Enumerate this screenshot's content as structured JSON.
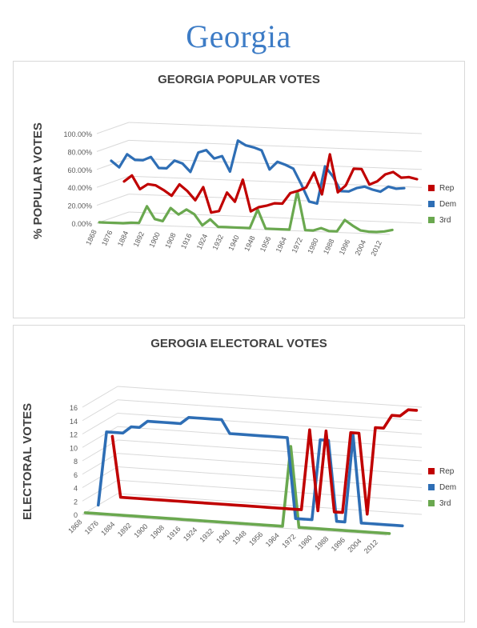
{
  "page": {
    "title": "Georgia"
  },
  "colors": {
    "rep": "#c00000",
    "dem": "#2e6eb5",
    "third": "#6aa84f"
  },
  "chart_data": [
    {
      "type": "line",
      "title": "GEORGIA POPULAR VOTES",
      "ylabel": "% POPULAR VOTES",
      "ytick_labels": [
        "0.00%",
        "20.00%",
        "40.00%",
        "60.00%",
        "80.00%",
        "100.00%"
      ],
      "ylim": [
        0,
        100
      ],
      "xtick_labels": [
        "1868",
        "1876",
        "1884",
        "1892",
        "1900",
        "1908",
        "1916",
        "1924",
        "1932",
        "1940",
        "1948",
        "1956",
        "1964",
        "1972",
        "1980",
        "1988",
        "1996",
        "2004",
        "2012"
      ],
      "x": [
        1868,
        1872,
        1876,
        1880,
        1884,
        1888,
        1892,
        1896,
        1900,
        1904,
        1908,
        1912,
        1916,
        1920,
        1924,
        1928,
        1932,
        1936,
        1940,
        1944,
        1948,
        1952,
        1956,
        1960,
        1964,
        1968,
        1972,
        1976,
        1980,
        1984,
        1988,
        1992,
        1996,
        2000,
        2004,
        2008,
        2012,
        2016
      ],
      "legend_position": "right",
      "series": [
        {
          "name": "Rep",
          "color_key": "rep",
          "values": [
            36,
            43,
            28,
            34,
            33,
            28,
            22,
            35,
            28,
            18,
            33,
            5,
            7,
            28,
            18,
            43,
            8,
            13,
            15,
            18,
            18,
            30,
            33,
            37,
            54,
            30,
            75,
            33,
            41,
            60,
            60,
            43,
            47,
            55,
            58,
            52,
            53,
            51
          ]
        },
        {
          "name": "Dem",
          "color_key": "dem",
          "values": [
            64,
            57,
            72,
            66,
            66,
            70,
            58,
            58,
            67,
            64,
            55,
            77,
            80,
            71,
            74,
            57,
            92,
            87,
            85,
            82,
            61,
            70,
            67,
            63,
            46,
            27,
            25,
            67,
            56,
            40,
            40,
            44,
            46,
            43,
            41,
            47,
            45,
            46
          ]
        },
        {
          "name": "3rd",
          "color_key": "third",
          "values": [
            0,
            0,
            0,
            0,
            1,
            1,
            20,
            6,
            4,
            19,
            12,
            18,
            13,
            1,
            8,
            0,
            0,
            0,
            0,
            0,
            21,
            0,
            0,
            0,
            0,
            43,
            0,
            0,
            3,
            0,
            0,
            13,
            7,
            2,
            1,
            1,
            2,
            4
          ]
        }
      ]
    },
    {
      "type": "line",
      "title": "GEROGIA ELECTORAL VOTES",
      "ylabel": "ELECTORAL VOTES",
      "ytick_labels": [
        "0",
        "2",
        "4",
        "6",
        "8",
        "10",
        "12",
        "14",
        "16"
      ],
      "ylim": [
        0,
        16
      ],
      "xtick_labels": [
        "1868",
        "1876",
        "1884",
        "1892",
        "1900",
        "1908",
        "1916",
        "1924",
        "1932",
        "1940",
        "1948",
        "1956",
        "1964",
        "1972",
        "1980",
        "1988",
        "1996",
        "2004",
        "2012"
      ],
      "x": [
        1868,
        1872,
        1876,
        1880,
        1884,
        1888,
        1892,
        1896,
        1900,
        1904,
        1908,
        1912,
        1916,
        1920,
        1924,
        1928,
        1932,
        1936,
        1940,
        1944,
        1948,
        1952,
        1956,
        1960,
        1964,
        1968,
        1972,
        1976,
        1980,
        1984,
        1988,
        1992,
        1996,
        2000,
        2004,
        2008,
        2012,
        2016
      ],
      "legend_position": "right",
      "series": [
        {
          "name": "Rep",
          "color_key": "rep",
          "values": [
            9,
            0,
            0,
            0,
            0,
            0,
            0,
            0,
            0,
            0,
            0,
            0,
            0,
            0,
            0,
            0,
            0,
            0,
            0,
            0,
            0,
            0,
            0,
            0,
            12,
            0,
            12,
            0,
            0,
            12,
            12,
            0,
            13,
            13,
            15,
            15,
            16,
            16
          ]
        },
        {
          "name": "Dem",
          "color_key": "dem",
          "values": [
            0,
            11,
            11,
            11,
            12,
            12,
            13,
            13,
            13,
            13,
            13,
            14,
            14,
            14,
            14,
            14,
            12,
            12,
            12,
            12,
            12,
            12,
            12,
            12,
            0,
            0,
            0,
            12,
            12,
            0,
            0,
            13,
            0,
            0,
            0,
            0,
            0,
            0
          ]
        },
        {
          "name": "3rd",
          "color_key": "third",
          "values": [
            0,
            0,
            0,
            0,
            0,
            0,
            0,
            0,
            0,
            0,
            0,
            0,
            0,
            0,
            0,
            0,
            0,
            0,
            0,
            0,
            0,
            0,
            0,
            0,
            0,
            12,
            0,
            0,
            0,
            0,
            0,
            0,
            0,
            0,
            0,
            0,
            0,
            0
          ]
        }
      ]
    }
  ]
}
